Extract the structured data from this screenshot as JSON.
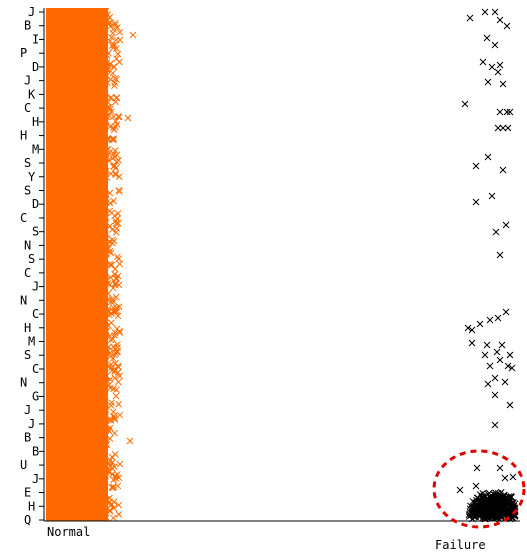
{
  "chart_data": {
    "type": "scatter",
    "title": "",
    "xlabel": "",
    "ylabel": "",
    "x_categories": [
      "Normal",
      "Failure"
    ],
    "y_tick_labels": [
      "J",
      "B",
      "I",
      "P",
      "D",
      "J",
      "K",
      "C",
      "H",
      "H",
      "M",
      "S",
      "Y",
      "S",
      "D",
      "C",
      "S",
      "N",
      "S",
      "C",
      "J",
      "N",
      "C",
      "H",
      "M",
      "S",
      "C",
      "N",
      "G",
      "J",
      "J",
      "B",
      "B",
      "U",
      "J",
      "E",
      "H",
      "Q"
    ],
    "series": [
      {
        "category": "Normal",
        "marker": "x",
        "color": "#ff6a00",
        "count_estimate": 6000
      },
      {
        "category": "Failure",
        "marker": "x",
        "color": "#000000",
        "count_estimate": 400
      }
    ],
    "annotation": {
      "shape": "dashed-ellipse",
      "color": "#e00000",
      "around": "Failure cluster at bottom"
    },
    "grid": false,
    "legend": "none"
  }
}
